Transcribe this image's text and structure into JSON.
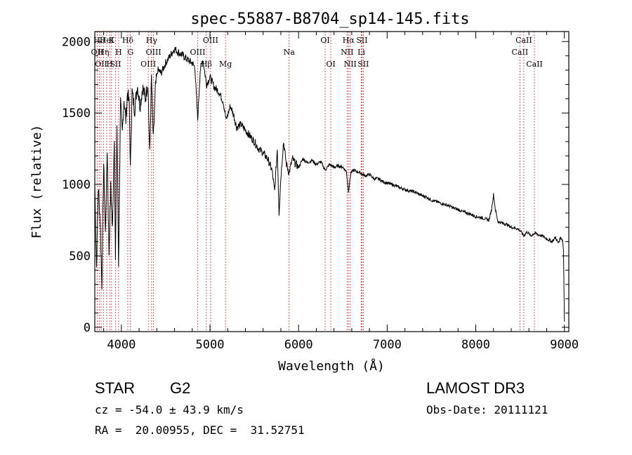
{
  "chart_data": {
    "type": "line",
    "title": "spec-55887-B8704_sp14-145.fits",
    "xlabel": "Wavelength (Å)",
    "ylabel": "Flux (relative)",
    "xlim": [
      3700,
      9050
    ],
    "ylim": [
      -30,
      2070
    ],
    "x_ticks": [
      4000,
      5000,
      6000,
      7000,
      8000,
      9000
    ],
    "y_ticks": [
      0,
      500,
      1000,
      1500,
      2000
    ],
    "series": [
      {
        "name": "flux",
        "x": [
          3700,
          3720,
          3740,
          3760,
          3780,
          3800,
          3820,
          3840,
          3860,
          3880,
          3900,
          3920,
          3933,
          3950,
          3968,
          3990,
          4010,
          4030,
          4050,
          4070,
          4090,
          4102,
          4120,
          4150,
          4180,
          4210,
          4240,
          4270,
          4300,
          4320,
          4340,
          4360,
          4385,
          4410,
          4450,
          4500,
          4550,
          4600,
          4650,
          4700,
          4750,
          4800,
          4830,
          4861,
          4890,
          4920,
          4960,
          5000,
          5050,
          5100,
          5150,
          5183,
          5230,
          5270,
          5300,
          5350,
          5400,
          5450,
          5500,
          5550,
          5600,
          5650,
          5700,
          5730,
          5760,
          5780,
          5800,
          5830,
          5860,
          5893,
          5930,
          5960,
          6000,
          6050,
          6100,
          6150,
          6200,
          6250,
          6300,
          6350,
          6400,
          6450,
          6500,
          6540,
          6563,
          6590,
          6620,
          6660,
          6700,
          6750,
          6800,
          6850,
          6900,
          6950,
          7000,
          7050,
          7100,
          7150,
          7200,
          7250,
          7300,
          7350,
          7400,
          7450,
          7500,
          7550,
          7600,
          7650,
          7700,
          7750,
          7800,
          7850,
          7900,
          7950,
          8000,
          8050,
          8100,
          8150,
          8180,
          8200,
          8220,
          8250,
          8300,
          8350,
          8400,
          8450,
          8498,
          8542,
          8580,
          8620,
          8662,
          8700,
          8750,
          8800,
          8830,
          8860,
          8900,
          8930,
          8960,
          8980,
          8990,
          9000
        ],
        "y": [
          1000,
          420,
          980,
          750,
          300,
          1150,
          650,
          1250,
          520,
          980,
          680,
          1350,
          450,
          1420,
          430,
          1580,
          1350,
          1600,
          1450,
          1650,
          1550,
          1100,
          1650,
          1520,
          1700,
          1550,
          1680,
          1600,
          1720,
          1200,
          1750,
          1300,
          1680,
          1800,
          1780,
          1850,
          1900,
          1950,
          1920,
          1900,
          1870,
          1850,
          1820,
          1450,
          1800,
          1880,
          1700,
          1750,
          1680,
          1650,
          1580,
          1450,
          1550,
          1480,
          1400,
          1420,
          1380,
          1340,
          1300,
          1250,
          1220,
          1180,
          1100,
          950,
          1250,
          800,
          1050,
          1300,
          1150,
          1080,
          1180,
          1150,
          1120,
          1180,
          1150,
          1170,
          1140,
          1160,
          1100,
          1140,
          1120,
          1130,
          1120,
          1090,
          950,
          1080,
          1100,
          1090,
          1080,
          1060,
          1070,
          1040,
          1040,
          1020,
          1010,
          1000,
          990,
          975,
          965,
          955,
          950,
          935,
          920,
          910,
          890,
          880,
          870,
          860,
          850,
          835,
          825,
          810,
          800,
          790,
          775,
          770,
          760,
          750,
          830,
          930,
          830,
          740,
          730,
          720,
          700,
          695,
          680,
          640,
          670,
          640,
          660,
          650,
          640,
          620,
          610,
          600,
          630,
          590,
          630,
          610,
          540,
          40
        ]
      }
    ],
    "line_labels": [
      {
        "x": 3727,
        "row": 2,
        "text": "OII"
      },
      {
        "x": 3750,
        "row": 1,
        "text": "Hθ"
      },
      {
        "x": 3771,
        "row": 3,
        "text": "OII"
      },
      {
        "x": 3798,
        "row": 2,
        "text": "Hη"
      },
      {
        "x": 3835,
        "row": 1,
        "text": "HeI"
      },
      {
        "x": 3869,
        "row": 3,
        "text": "H"
      },
      {
        "x": 3889,
        "row": 1,
        "text": "K"
      },
      {
        "x": 3934,
        "row": 3,
        "text": "SII"
      },
      {
        "x": 3969,
        "row": 2,
        "text": "H"
      },
      {
        "x": 4072,
        "row": 1,
        "text": "Hδ"
      },
      {
        "x": 4102,
        "row": 2,
        "text": "G"
      },
      {
        "x": 4304,
        "row": 3,
        "text": "OIII"
      },
      {
        "x": 4341,
        "row": 1,
        "text": "Hγ"
      },
      {
        "x": 4363,
        "row": 2,
        "text": "OIII"
      },
      {
        "x": 4861,
        "row": 2,
        "text": "OIII"
      },
      {
        "x": 4959,
        "row": 3,
        "text": "Hβ"
      },
      {
        "x": 5007,
        "row": 1,
        "text": "OIII"
      },
      {
        "x": 5175,
        "row": 3,
        "text": "Mg"
      },
      {
        "x": 5893,
        "row": 2,
        "text": "Na"
      },
      {
        "x": 6300,
        "row": 1,
        "text": "OI"
      },
      {
        "x": 6364,
        "row": 3,
        "text": "OI"
      },
      {
        "x": 6548,
        "row": 2,
        "text": "NII"
      },
      {
        "x": 6563,
        "row": 1,
        "text": "Hα"
      },
      {
        "x": 6583,
        "row": 3,
        "text": "NII"
      },
      {
        "x": 6716,
        "row": 1,
        "text": "SII"
      },
      {
        "x": 6731,
        "row": 3,
        "text": "SII"
      },
      {
        "x": 6708,
        "row": 2,
        "text": "Li"
      },
      {
        "x": 8498,
        "row": 2,
        "text": "CaII"
      },
      {
        "x": 8542,
        "row": 1,
        "text": "CaII"
      },
      {
        "x": 8662,
        "row": 3,
        "text": "CaII"
      }
    ]
  },
  "info": {
    "class": "STAR",
    "subclass": "G2",
    "survey": "LAMOST DR3",
    "cz": "cz = -54.0 ± 43.9 km/s",
    "obs_date": "Obs-Date: 20111121",
    "coords": "RA =  20.00955, DEC =  31.52751"
  }
}
